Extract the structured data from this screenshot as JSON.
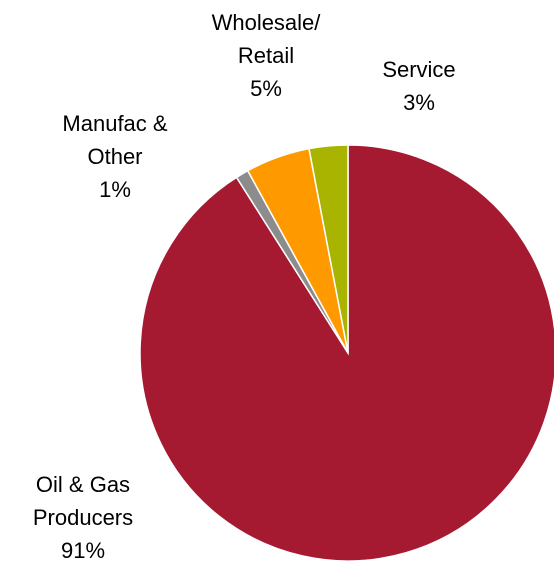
{
  "chart_data": {
    "type": "pie",
    "start_angle": "12 o'clock",
    "direction": "clockwise",
    "legend": "none",
    "slices": [
      {
        "name": [
          "Oil & Gas",
          "Producers"
        ],
        "value": 91,
        "value_label": "91%",
        "color": "#A51931"
      },
      {
        "name": [
          "Manufac &",
          "Other"
        ],
        "value": 1,
        "value_label": "1%",
        "color": "#8C8C8C"
      },
      {
        "name": [
          "Wholesale/",
          "Retail"
        ],
        "value": 5,
        "value_label": "5%",
        "color": "#FF9900"
      },
      {
        "name": [
          "Service"
        ],
        "value": 3,
        "value_label": "3%",
        "color": "#A8B400"
      }
    ]
  }
}
